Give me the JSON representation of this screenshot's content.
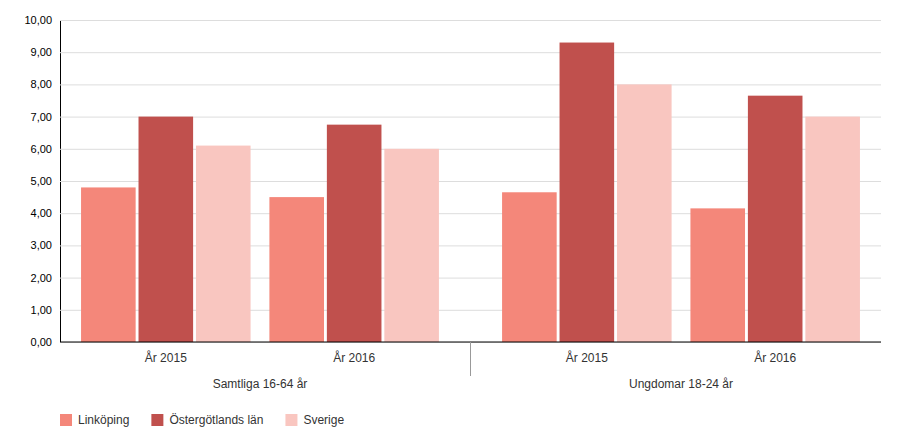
{
  "chart_data": {
    "type": "bar",
    "groups": [
      {
        "label": "Samtliga 16-64 år",
        "categories": [
          "År 2015",
          "År 2016"
        ]
      },
      {
        "label": "Ungdomar 18-24 år",
        "categories": [
          "År 2015",
          "År 2016"
        ]
      }
    ],
    "series": [
      {
        "name": "Linköping",
        "color": "#F4877A",
        "values": [
          4.8,
          4.5,
          4.65,
          4.15
        ]
      },
      {
        "name": "Östergötlands län",
        "color": "#C0504D",
        "values": [
          7.0,
          6.75,
          9.3,
          7.65
        ]
      },
      {
        "name": "Sverige",
        "color": "#F9C6C0",
        "values": [
          6.1,
          6.0,
          8.0,
          7.0
        ]
      }
    ],
    "ylim": [
      0,
      10
    ],
    "yticks": [
      {
        "value": 0,
        "label": "0,00"
      },
      {
        "value": 1,
        "label": "1,00"
      },
      {
        "value": 2,
        "label": "2,00"
      },
      {
        "value": 3,
        "label": "3,00"
      },
      {
        "value": 4,
        "label": "4,00"
      },
      {
        "value": 5,
        "label": "5,00"
      },
      {
        "value": 6,
        "label": "6,00"
      },
      {
        "value": 7,
        "label": "7,00"
      },
      {
        "value": 8,
        "label": "8,00"
      },
      {
        "value": 9,
        "label": "9,00"
      },
      {
        "value": 10,
        "label": "10,00"
      }
    ],
    "grid": true,
    "legend": "bottom-left"
  }
}
